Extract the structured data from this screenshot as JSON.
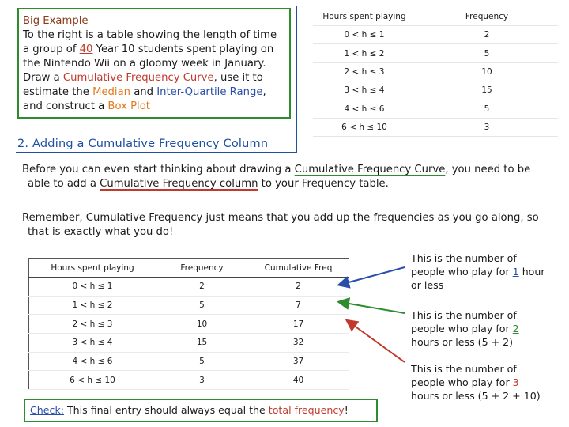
{
  "intro": {
    "title": "Big Example",
    "text_a": "To the right is a table showing the length of time a group of ",
    "count": "40",
    "text_b": " Year 10 students spent playing on the Nintendo Wii on a gloomy week in January. Draw a ",
    "cf_curve": "Cumulative Frequency Curve",
    "text_c": ", use it to estimate the ",
    "median": "Median",
    "text_d": " and ",
    "iqr": "Inter-Quartile Range",
    "text_e": ", and construct a ",
    "boxplot": "Box Plot"
  },
  "top_table": {
    "headers": [
      "Hours spent playing",
      "Frequency"
    ],
    "rows": [
      [
        "0 < h ≤ 1",
        "2"
      ],
      [
        "1 < h ≤ 2",
        "5"
      ],
      [
        "2 < h ≤ 3",
        "10"
      ],
      [
        "3 < h ≤ 4",
        "15"
      ],
      [
        "4 < h ≤ 6",
        "5"
      ],
      [
        "6 < h ≤ 10",
        "3"
      ]
    ]
  },
  "section": {
    "heading": "2. Adding a Cumulative Frequency Column"
  },
  "para1": {
    "a": "Before you can even start thinking about drawing a ",
    "curve": "Cumulative Frequency Curve",
    "b": ", you need to be",
    "c": "able to add a ",
    "column": "Cumulative Frequency column",
    "d": " to your Frequency table."
  },
  "para2": {
    "line1": "Remember, Cumulative Frequency just means that you add up the frequencies as you go along, so",
    "line2": "that is exactly what you do!"
  },
  "cf_table": {
    "headers": [
      "Hours spent playing",
      "Frequency",
      "Cumulative Freq"
    ],
    "rows": [
      [
        "0 < h ≤ 1",
        "2",
        "2"
      ],
      [
        "1 < h ≤ 2",
        "5",
        "7"
      ],
      [
        "2 < h ≤ 3",
        "10",
        "17"
      ],
      [
        "3 < h ≤ 4",
        "15",
        "32"
      ],
      [
        "4 < h ≤ 6",
        "5",
        "37"
      ],
      [
        "6 < h ≤ 10",
        "3",
        "40"
      ]
    ]
  },
  "check": {
    "label": "Check:",
    "a": " This final entry should always equal the ",
    "total": "total frequency",
    "b": "!"
  },
  "notes": [
    {
      "a": "This is the number of people who play for ",
      "num": "1",
      "b": " hour or less",
      "c": ""
    },
    {
      "a": "This is the number of people who play for ",
      "num": "2",
      "b": " hours or less ",
      "c": "(5 + 2)"
    },
    {
      "a": "This is the number of people who play for ",
      "num": "3",
      "b": " hours or less ",
      "c": "(5 + 2 + 10)"
    }
  ],
  "colors": {
    "green_box": "#2e8b2e",
    "heading_blue": "#1e4fa0",
    "red": "#c0392b"
  }
}
